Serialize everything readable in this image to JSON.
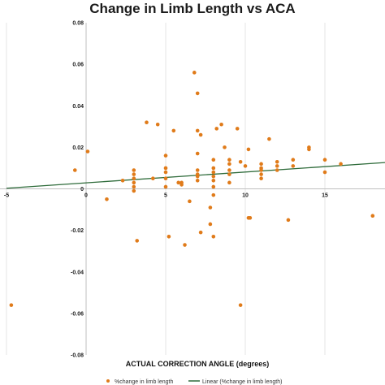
{
  "chart_data": {
    "type": "scatter",
    "title": "Change in Limb Length vs ACA",
    "xlabel": "ACTUAL CORRECTION ANGLE (degrees)",
    "ylabel": "",
    "xlim": [
      -5,
      20
    ],
    "ylim": [
      -0.08,
      0.08
    ],
    "x_ticks": [
      -5,
      0,
      5,
      10,
      15
    ],
    "x_tick_labels": [
      "-5",
      "0",
      "5",
      "10",
      "15"
    ],
    "y_ticks": [
      0.08,
      0.06,
      0.04,
      0.02,
      0,
      -0.02,
      -0.04,
      -0.06,
      -0.08
    ],
    "y_tick_labels": [
      "0.08",
      "0.06",
      "0.04",
      "0.02",
      "0",
      "-0.02",
      "-0.04",
      "-0.06",
      "-0.08"
    ],
    "grid": "vertical",
    "legend_position": "bottom",
    "colors": {
      "points": "#E07B1A",
      "trendline": "#2E6B3A",
      "grid": "#E6E6E6"
    },
    "series": [
      {
        "name": "%change in limb length",
        "kind": "scatter",
        "x": [
          -4.7,
          -0.7,
          0.1,
          1.3,
          2.3,
          3.0,
          3.0,
          3.0,
          3.0,
          3.0,
          3.0,
          3.2,
          3.8,
          4.2,
          4.5,
          5.0,
          5.0,
          5.0,
          5.0,
          5.0,
          5.2,
          5.5,
          5.8,
          6.0,
          6.0,
          6.2,
          6.5,
          6.8,
          7.0,
          7.0,
          7.0,
          7.0,
          7.0,
          7.0,
          7.0,
          7.2,
          7.2,
          7.8,
          7.8,
          8.0,
          8.0,
          8.0,
          8.0,
          8.0,
          8.0,
          8.0,
          8.0,
          8.2,
          8.5,
          8.7,
          9.0,
          9.0,
          9.0,
          9.0,
          9.0,
          9.5,
          9.7,
          9.7,
          10.0,
          10.2,
          10.3,
          10.2,
          11.0,
          11.0,
          11.0,
          11.0,
          11.0,
          11.5,
          12.0,
          12.0,
          12.0,
          12.7,
          13.0,
          13.0,
          14.0,
          14.0,
          15.0,
          15.0,
          16.0,
          18.0,
          19.0
        ],
        "y": [
          -0.056,
          0.009,
          0.018,
          -0.005,
          0.004,
          0.009,
          0.007,
          0.005,
          0.003,
          0.001,
          -0.001,
          -0.025,
          0.032,
          0.005,
          0.031,
          0.016,
          0.01,
          0.008,
          0.005,
          0.001,
          -0.023,
          0.028,
          0.003,
          0.003,
          0.002,
          -0.027,
          -0.006,
          0.056,
          0.046,
          0.028,
          0.017,
          0.009,
          0.007,
          0.006,
          0.004,
          0.026,
          -0.021,
          -0.017,
          -0.009,
          0.014,
          0.01,
          0.008,
          0.006,
          0.004,
          0.001,
          -0.003,
          -0.023,
          0.029,
          0.031,
          0.02,
          0.014,
          0.012,
          0.009,
          0.007,
          0.003,
          0.029,
          0.013,
          -0.056,
          0.011,
          0.019,
          -0.014,
          -0.014,
          0.01,
          0.012,
          0.009,
          0.007,
          0.005,
          0.024,
          0.013,
          0.011,
          0.009,
          -0.015,
          0.014,
          0.011,
          0.02,
          0.019,
          0.014,
          0.008,
          0.012,
          -0.013,
          -0.005
        ]
      },
      {
        "name": "Linear (%change in limb length)",
        "kind": "line",
        "x": [
          -5,
          20
        ],
        "y": [
          0.0003,
          0.0133
        ]
      }
    ]
  }
}
